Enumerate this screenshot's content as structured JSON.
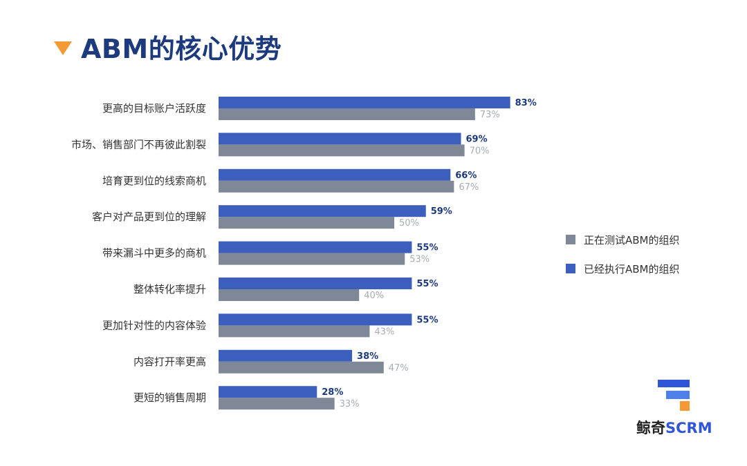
{
  "title": "ABM的核心优势",
  "colors": {
    "executing": "#3c5ebd",
    "testing": "#7f8896",
    "executing_label": "#1c3a7d",
    "testing_label": "#a6abb3",
    "title": "#1c3a7d",
    "accent": "#f39a35"
  },
  "legend": {
    "testing": "正在测试ABM的组织",
    "executing": "已经执行ABM的组织"
  },
  "logo": {
    "part1": "鲸奇",
    "part2": "SCRM"
  },
  "chart_data": {
    "type": "bar",
    "orientation": "horizontal",
    "categories": [
      "更高的目标账户活跃度",
      "市场、销售部门不再彼此割裂",
      "培育更到位的线索商机",
      "客户对产品更到位的理解",
      "带来漏斗中更多的商机",
      "整体转化率提升",
      "更加针对性的内容体验",
      "内容打开率更高",
      "更短的销售周期"
    ],
    "series": [
      {
        "name": "已经执行ABM的组织",
        "values": [
          83,
          69,
          66,
          59,
          55,
          55,
          55,
          38,
          28
        ]
      },
      {
        "name": "正在测试ABM的组织",
        "values": [
          73,
          70,
          67,
          50,
          53,
          40,
          43,
          47,
          33
        ]
      }
    ],
    "xlim": [
      0,
      100
    ],
    "legend_position": "right",
    "grid": false
  }
}
